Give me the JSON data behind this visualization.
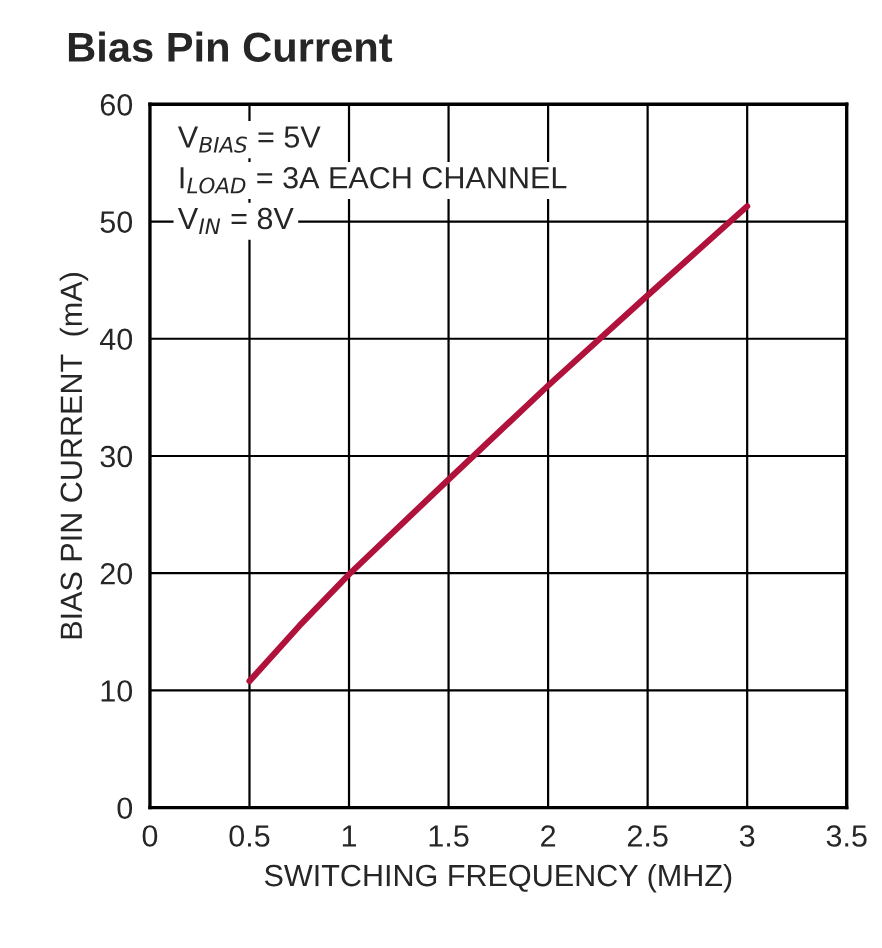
{
  "chart_data": {
    "type": "line",
    "title": "Bias Pin Current",
    "xlabel": "SWITCHING FREQUENCY (MHZ)",
    "ylabel": "BIAS PIN CURRENT  (mA)",
    "x": [
      0.5,
      0.75,
      1,
      1.5,
      2,
      2.5,
      3
    ],
    "series": [
      {
        "color": "#b0123c",
        "values": [
          10.8,
          15.5,
          19.9,
          28,
          36,
          43.7,
          51.3
        ]
      }
    ],
    "annotations": [
      "V$_{BIAS}$ = 5V",
      "I$_{LOAD}$ = 3A EACH CHANNEL",
      "V$_{IN}$ = 8V"
    ],
    "xlim": [
      0,
      3.5
    ],
    "xticks": [
      0,
      0.5,
      1,
      1.5,
      2,
      2.5,
      3,
      3.5
    ],
    "ylim": [
      0,
      60
    ],
    "yticks": [
      0,
      10,
      20,
      30,
      40,
      50,
      60
    ],
    "grid": true,
    "marker": "none",
    "line_style": "solid"
  }
}
